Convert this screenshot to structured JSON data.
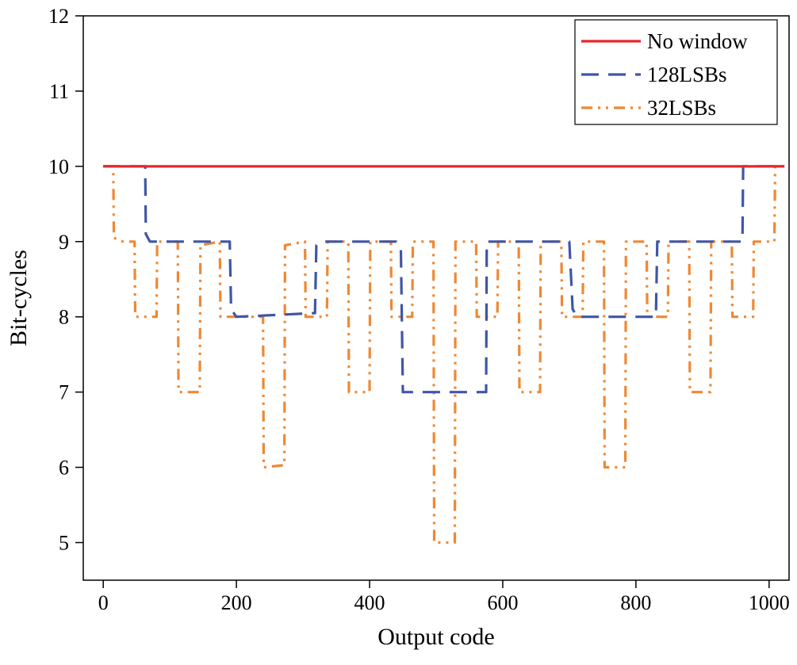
{
  "chart_data": {
    "type": "line",
    "title": "",
    "xlabel": "Output code",
    "ylabel": "Bit-cycles",
    "xlim": [
      -30,
      1030
    ],
    "ylim": [
      4.5,
      12
    ],
    "xticks": [
      0,
      200,
      400,
      600,
      800,
      1000
    ],
    "yticks": [
      5,
      6,
      7,
      8,
      9,
      10,
      11,
      12
    ],
    "grid": false,
    "legend": "top-right",
    "series": [
      {
        "name": "No window",
        "color": "#e8262b",
        "style": "solid",
        "points": [
          [
            0,
            10
          ],
          [
            1023,
            10
          ]
        ]
      },
      {
        "name": "128LSBs",
        "color": "#3f56a6",
        "style": "dashed",
        "points": [
          [
            0,
            10
          ],
          [
            63,
            10
          ],
          [
            64,
            9.1
          ],
          [
            70,
            9
          ],
          [
            190,
            9
          ],
          [
            192,
            8.1
          ],
          [
            200,
            8
          ],
          [
            318,
            8.05
          ],
          [
            320,
            8.95
          ],
          [
            330,
            9
          ],
          [
            440,
            9
          ],
          [
            447,
            8.9
          ],
          [
            450,
            7
          ],
          [
            575,
            7
          ],
          [
            576,
            9
          ],
          [
            700,
            9
          ],
          [
            705,
            8.1
          ],
          [
            712,
            8
          ],
          [
            830,
            8
          ],
          [
            832,
            9
          ],
          [
            960,
            9
          ],
          [
            961,
            10
          ],
          [
            1023,
            10
          ]
        ]
      },
      {
        "name": "32LSBs",
        "color": "#ef8833",
        "style": "dashdotdot",
        "points": [
          [
            0,
            10
          ],
          [
            15,
            10
          ],
          [
            16,
            9.05
          ],
          [
            30,
            9
          ],
          [
            47,
            9
          ],
          [
            48,
            8
          ],
          [
            80,
            8
          ],
          [
            81,
            9
          ],
          [
            112,
            9
          ],
          [
            113,
            7
          ],
          [
            145,
            7
          ],
          [
            146,
            8.95
          ],
          [
            175,
            9
          ],
          [
            176,
            8
          ],
          [
            240,
            8
          ],
          [
            241,
            6
          ],
          [
            272,
            6.03
          ],
          [
            273,
            8.95
          ],
          [
            303,
            9
          ],
          [
            304,
            8
          ],
          [
            336,
            8
          ],
          [
            337,
            9
          ],
          [
            368,
            9
          ],
          [
            369,
            7
          ],
          [
            400,
            7
          ],
          [
            401,
            9
          ],
          [
            432,
            9
          ],
          [
            433,
            8
          ],
          [
            464,
            8
          ],
          [
            465,
            9
          ],
          [
            496,
            9
          ],
          [
            497,
            5
          ],
          [
            528,
            5
          ],
          [
            529,
            9
          ],
          [
            560,
            9
          ],
          [
            561,
            8
          ],
          [
            592,
            8
          ],
          [
            593,
            9
          ],
          [
            624,
            9
          ],
          [
            625,
            7
          ],
          [
            656,
            7
          ],
          [
            657,
            9
          ],
          [
            688,
            9
          ],
          [
            689,
            8
          ],
          [
            720,
            8
          ],
          [
            721,
            9
          ],
          [
            752,
            9
          ],
          [
            753,
            6
          ],
          [
            784,
            6
          ],
          [
            785,
            9
          ],
          [
            816,
            9
          ],
          [
            817,
            8
          ],
          [
            848,
            8
          ],
          [
            849,
            9
          ],
          [
            880,
            9
          ],
          [
            881,
            7
          ],
          [
            912,
            7
          ],
          [
            913,
            9
          ],
          [
            944,
            9
          ],
          [
            945,
            8
          ],
          [
            976,
            8
          ],
          [
            977,
            9
          ],
          [
            1008,
            9
          ],
          [
            1009,
            10
          ],
          [
            1023,
            10
          ]
        ]
      }
    ]
  }
}
